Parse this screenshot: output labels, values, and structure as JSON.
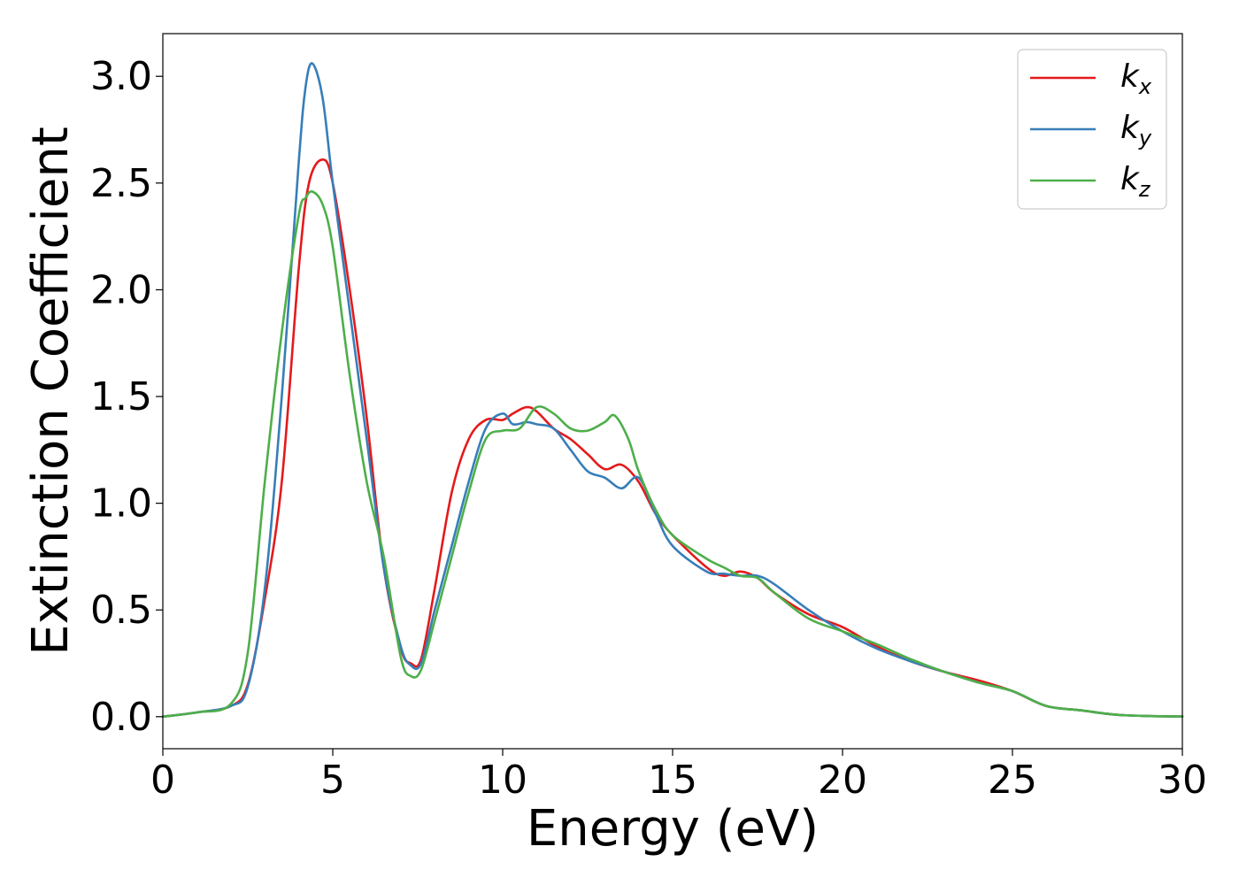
{
  "chart_data": {
    "type": "line",
    "title": "",
    "xlabel": "Energy (eV)",
    "ylabel": "Extinction Coefficient",
    "xlim": [
      0,
      30
    ],
    "ylim": [
      -0.15,
      3.2
    ],
    "xticks": [
      0,
      5,
      10,
      15,
      20,
      25,
      30
    ],
    "xtick_labels": [
      "0",
      "5",
      "10",
      "15",
      "20",
      "25",
      "30"
    ],
    "yticks": [
      0.0,
      0.5,
      1.0,
      1.5,
      2.0,
      2.5,
      3.0
    ],
    "ytick_labels": [
      "0.0",
      "0.5",
      "1.0",
      "1.5",
      "2.0",
      "2.5",
      "3.0"
    ],
    "grid": false,
    "legend_position": "top-right",
    "series": [
      {
        "label_base": "k",
        "label_sub": "x",
        "color": "#e41a1c",
        "x": [
          0,
          1,
          2,
          2.5,
          3,
          3.5,
          4,
          4.3,
          4.7,
          5,
          5.5,
          6,
          6.5,
          7,
          7.3,
          7.6,
          8,
          8.5,
          9,
          9.5,
          10,
          10.3,
          10.7,
          11,
          11.5,
          12,
          12.5,
          13,
          13.5,
          14,
          14.5,
          15,
          16,
          16.5,
          17,
          17.5,
          18,
          19,
          20,
          21,
          22,
          23,
          24,
          25,
          26,
          27,
          28,
          29,
          30
        ],
        "y": [
          0,
          0.02,
          0.05,
          0.15,
          0.55,
          1.1,
          2.1,
          2.5,
          2.61,
          2.5,
          2.0,
          1.4,
          0.7,
          0.32,
          0.25,
          0.27,
          0.6,
          1.05,
          1.3,
          1.39,
          1.39,
          1.42,
          1.45,
          1.43,
          1.35,
          1.3,
          1.23,
          1.16,
          1.18,
          1.1,
          0.95,
          0.85,
          0.7,
          0.66,
          0.68,
          0.65,
          0.58,
          0.48,
          0.42,
          0.33,
          0.26,
          0.21,
          0.17,
          0.12,
          0.05,
          0.03,
          0.01,
          0.003,
          0.001
        ]
      },
      {
        "label_base": "k",
        "label_sub": "y",
        "color": "#377eb8",
        "x": [
          0,
          1,
          2,
          2.5,
          3,
          3.5,
          4,
          4.2,
          4.4,
          4.7,
          5,
          5.5,
          6,
          6.5,
          7,
          7.3,
          7.6,
          8,
          8.5,
          9,
          9.5,
          10,
          10.3,
          10.7,
          11,
          11.5,
          12,
          12.5,
          13,
          13.5,
          14,
          14.5,
          15,
          16,
          16.5,
          17,
          17.5,
          18,
          19,
          20,
          21,
          22,
          23,
          24,
          25,
          26,
          27,
          28,
          29,
          30
        ],
        "y": [
          0,
          0.02,
          0.05,
          0.14,
          0.6,
          1.5,
          2.6,
          2.95,
          3.06,
          2.9,
          2.5,
          1.9,
          1.3,
          0.7,
          0.33,
          0.24,
          0.25,
          0.5,
          0.8,
          1.1,
          1.35,
          1.42,
          1.37,
          1.38,
          1.37,
          1.35,
          1.25,
          1.15,
          1.12,
          1.07,
          1.12,
          0.95,
          0.8,
          0.68,
          0.67,
          0.66,
          0.66,
          0.62,
          0.5,
          0.4,
          0.32,
          0.26,
          0.21,
          0.16,
          0.12,
          0.05,
          0.03,
          0.01,
          0.003,
          0.001
        ]
      },
      {
        "label_base": "k",
        "label_sub": "z",
        "color": "#4daf4a",
        "x": [
          0,
          1,
          2,
          2.5,
          3,
          3.5,
          4,
          4.2,
          4.4,
          4.7,
          5,
          5.5,
          6,
          6.5,
          7,
          7.3,
          7.6,
          8,
          8.5,
          9,
          9.5,
          10,
          10.5,
          11,
          11.5,
          12,
          12.5,
          13,
          13.3,
          13.7,
          14,
          14.5,
          15,
          16,
          16.5,
          17,
          17.5,
          18,
          19,
          20,
          21,
          22,
          23,
          24,
          25,
          26,
          27,
          28,
          29,
          30
        ],
        "y": [
          0,
          0.02,
          0.06,
          0.3,
          1.1,
          1.8,
          2.35,
          2.43,
          2.46,
          2.4,
          2.2,
          1.6,
          1.1,
          0.75,
          0.28,
          0.19,
          0.22,
          0.45,
          0.75,
          1.05,
          1.3,
          1.34,
          1.35,
          1.45,
          1.42,
          1.35,
          1.34,
          1.38,
          1.41,
          1.3,
          1.15,
          0.97,
          0.85,
          0.74,
          0.7,
          0.66,
          0.65,
          0.58,
          0.46,
          0.4,
          0.34,
          0.27,
          0.21,
          0.16,
          0.12,
          0.05,
          0.03,
          0.01,
          0.003,
          0.001
        ]
      }
    ]
  }
}
